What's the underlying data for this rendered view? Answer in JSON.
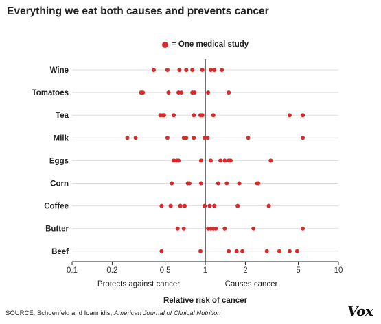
{
  "title": "Everything we eat both causes and prevents cancer",
  "legend_label": "= One medical study",
  "source_prefix": "SOURCE: Schoenfeld and Ioannidis, ",
  "source_journal": "American Journal of Clinical Nutrition",
  "brand": "Vox",
  "colors": {
    "dot": "#d52b2b",
    "grid": "#dddddd",
    "axis": "#222222"
  },
  "chart_data": {
    "type": "scatter",
    "xscale": "log",
    "xlim": [
      0.1,
      10
    ],
    "xticks": [
      0.1,
      0.2,
      0.5,
      1,
      2,
      5,
      10
    ],
    "xtick_labels": [
      "0.1",
      "0.2",
      "0.5",
      "1",
      "2",
      "5",
      "10"
    ],
    "xlabel": "Relative risk of cancer",
    "region_labels": {
      "left": "Protects against cancer",
      "right": "Causes cancer"
    },
    "reference_line": 1,
    "series": [
      {
        "category": "Wine",
        "values": [
          0.41,
          0.52,
          0.64,
          0.72,
          0.8,
          0.95,
          1.1,
          1.17,
          1.33
        ]
      },
      {
        "category": "Tomatoes",
        "values": [
          0.33,
          0.34,
          0.53,
          0.63,
          0.66,
          0.8,
          0.83,
          1.05,
          1.5
        ]
      },
      {
        "category": "Tea",
        "values": [
          0.46,
          0.48,
          0.49,
          0.58,
          0.82,
          0.92,
          0.95,
          1.15,
          4.3,
          5.4
        ]
      },
      {
        "category": "Milk",
        "values": [
          0.26,
          0.3,
          0.52,
          0.69,
          0.72,
          0.82,
          0.99,
          1.04,
          2.1,
          5.4
        ]
      },
      {
        "category": "Eggs",
        "values": [
          0.58,
          0.61,
          0.63,
          0.93,
          1.1,
          1.3,
          1.4,
          1.5,
          1.55,
          3.1
        ]
      },
      {
        "category": "Corn",
        "values": [
          0.56,
          0.74,
          0.76,
          0.93,
          1.25,
          1.45,
          1.8,
          2.45,
          2.5
        ]
      },
      {
        "category": "Coffee",
        "values": [
          0.47,
          0.55,
          0.65,
          0.7,
          0.99,
          1.08,
          1.17,
          1.75,
          3.0
        ]
      },
      {
        "category": "Butter",
        "values": [
          0.62,
          0.69,
          1.05,
          1.1,
          1.15,
          1.2,
          1.4,
          2.3,
          5.4
        ]
      },
      {
        "category": "Beef",
        "values": [
          0.47,
          0.92,
          1.5,
          1.72,
          1.9,
          2.9,
          3.6,
          4.3,
          4.9
        ]
      }
    ]
  }
}
